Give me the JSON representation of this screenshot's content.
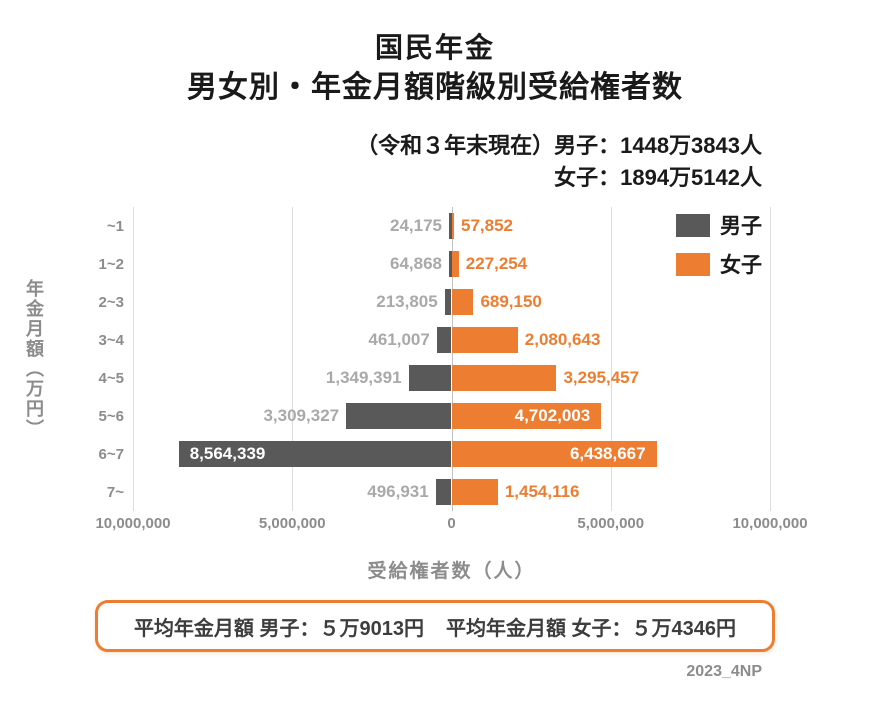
{
  "page": {
    "title_line1": "国民年金",
    "title_line2": "男女別・年金月額階級別受給権者数",
    "subtitle_line1": "（令和３年末現在）男子：1448万3843人",
    "subtitle_line2": "女子：1894万5142人",
    "summary_male": "平均年金月額 男子：５万9013円",
    "summary_female": "平均年金月額 女子：５万4346円",
    "footer_note": "2023_4NP"
  },
  "chart_data": {
    "type": "bar",
    "subtype": "bidirectional-population-pyramid",
    "title": "国民年金 男女別・年金月額階級別受給権者数",
    "categories": [
      "~1",
      "1~2",
      "2~3",
      "3~4",
      "4~5",
      "5~6",
      "6~7",
      "7~"
    ],
    "series": [
      {
        "name": "男子",
        "side": "left",
        "color": "#595959",
        "total_label": "1448万3843人",
        "values": [
          24175,
          64868,
          213805,
          461007,
          1349391,
          3309327,
          8564339,
          496931
        ]
      },
      {
        "name": "女子",
        "side": "right",
        "color": "#ED7D31",
        "total_label": "1894万5142人",
        "values": [
          57852,
          227254,
          689150,
          2080643,
          3295457,
          4702003,
          6438667,
          1454116
        ]
      }
    ],
    "x_axis": {
      "title": "受給権者数（人）",
      "max": 10000000,
      "ticks": [
        "10,000,000",
        "5,000,000",
        "0",
        "5,000,000",
        "10,000,000"
      ]
    },
    "y_axis": {
      "title": "年金月額（万円）"
    },
    "legend": {
      "position": "top-right",
      "entries": [
        "男子",
        "女子"
      ]
    },
    "label_inside_threshold": 4000000,
    "grid": true,
    "colors": {
      "male": "#595959",
      "female": "#ED7D31",
      "axis_text": "#8c8c8c"
    }
  }
}
